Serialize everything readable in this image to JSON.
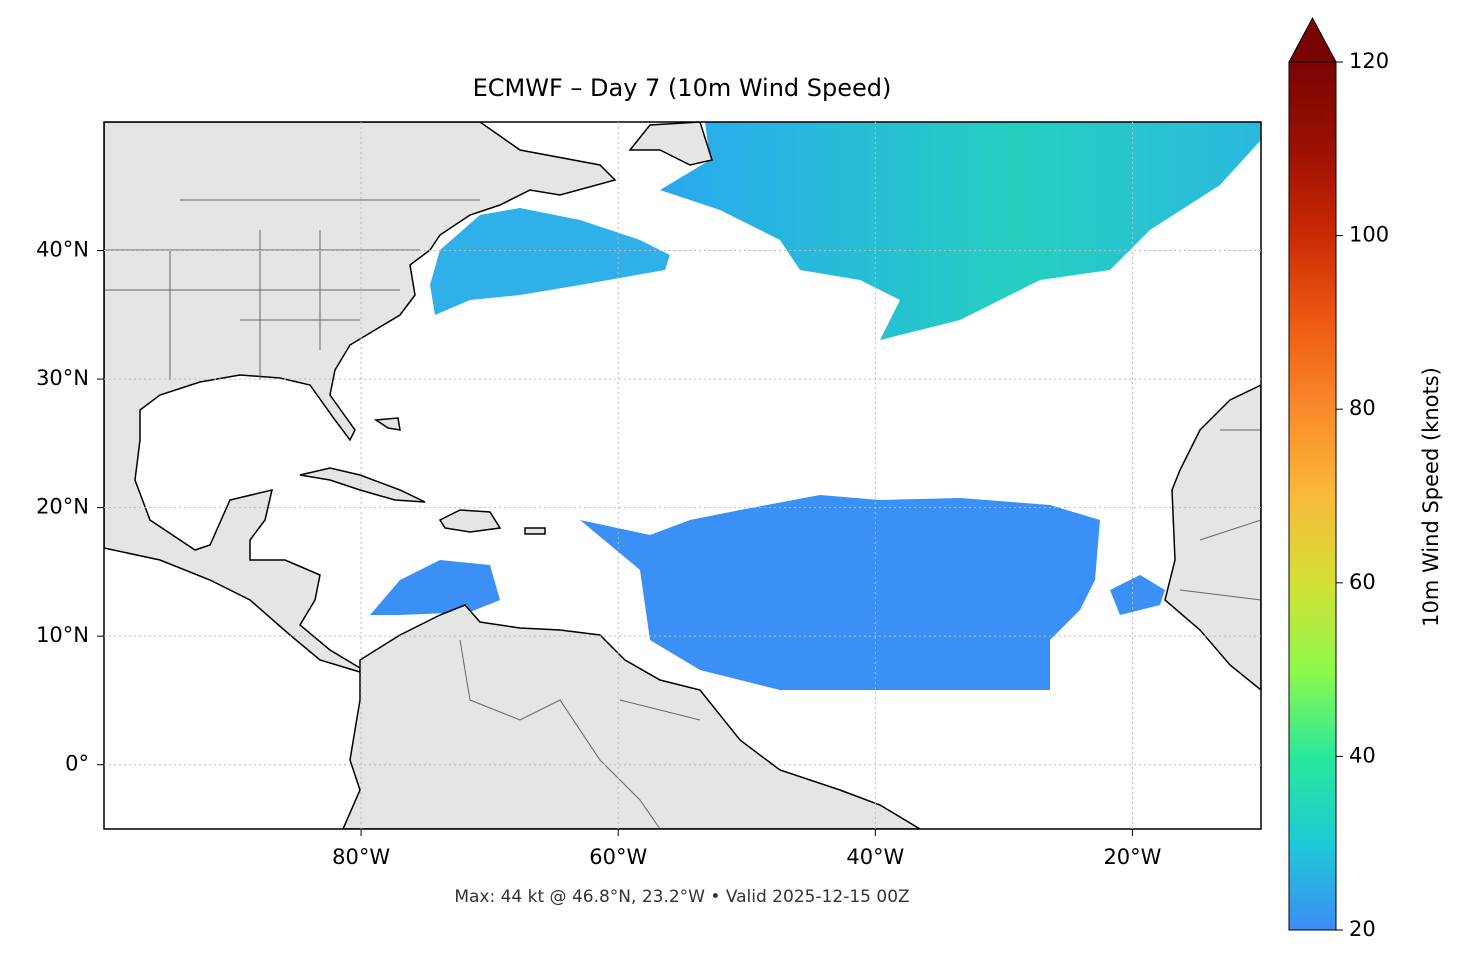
{
  "chart_data": {
    "type": "map",
    "title": "ECMWF – Day 7 (10m Wind Speed)",
    "footer": "Max: 44 kt @ 46.8°N, 23.2°W • Valid 2025-12-15 00Z",
    "xlim": [
      -100,
      -10
    ],
    "ylim": [
      -5,
      50
    ],
    "xticks": [
      {
        "value": -80,
        "label": "80°W"
      },
      {
        "value": -60,
        "label": "60°W"
      },
      {
        "value": -40,
        "label": "40°W"
      },
      {
        "value": -20,
        "label": "20°W"
      }
    ],
    "yticks": [
      {
        "value": 0,
        "label": "0°"
      },
      {
        "value": 10,
        "label": "10°N"
      },
      {
        "value": 20,
        "label": "20°N"
      },
      {
        "value": 30,
        "label": "30°N"
      },
      {
        "value": 40,
        "label": "40°N"
      }
    ],
    "grid": true,
    "colorbar": {
      "label": "10m Wind Speed (knots)",
      "lim": [
        20,
        120
      ],
      "ticks": [
        20,
        40,
        60,
        80,
        100,
        120
      ],
      "colors": [
        "#3d8cf6",
        "#1ecad6",
        "#2ae89a",
        "#8ef94a",
        "#d4e036",
        "#f9b93a",
        "#fa8a2a",
        "#ed5a13",
        "#cb2a04",
        "#9b1002",
        "#7a0403"
      ]
    }
  }
}
